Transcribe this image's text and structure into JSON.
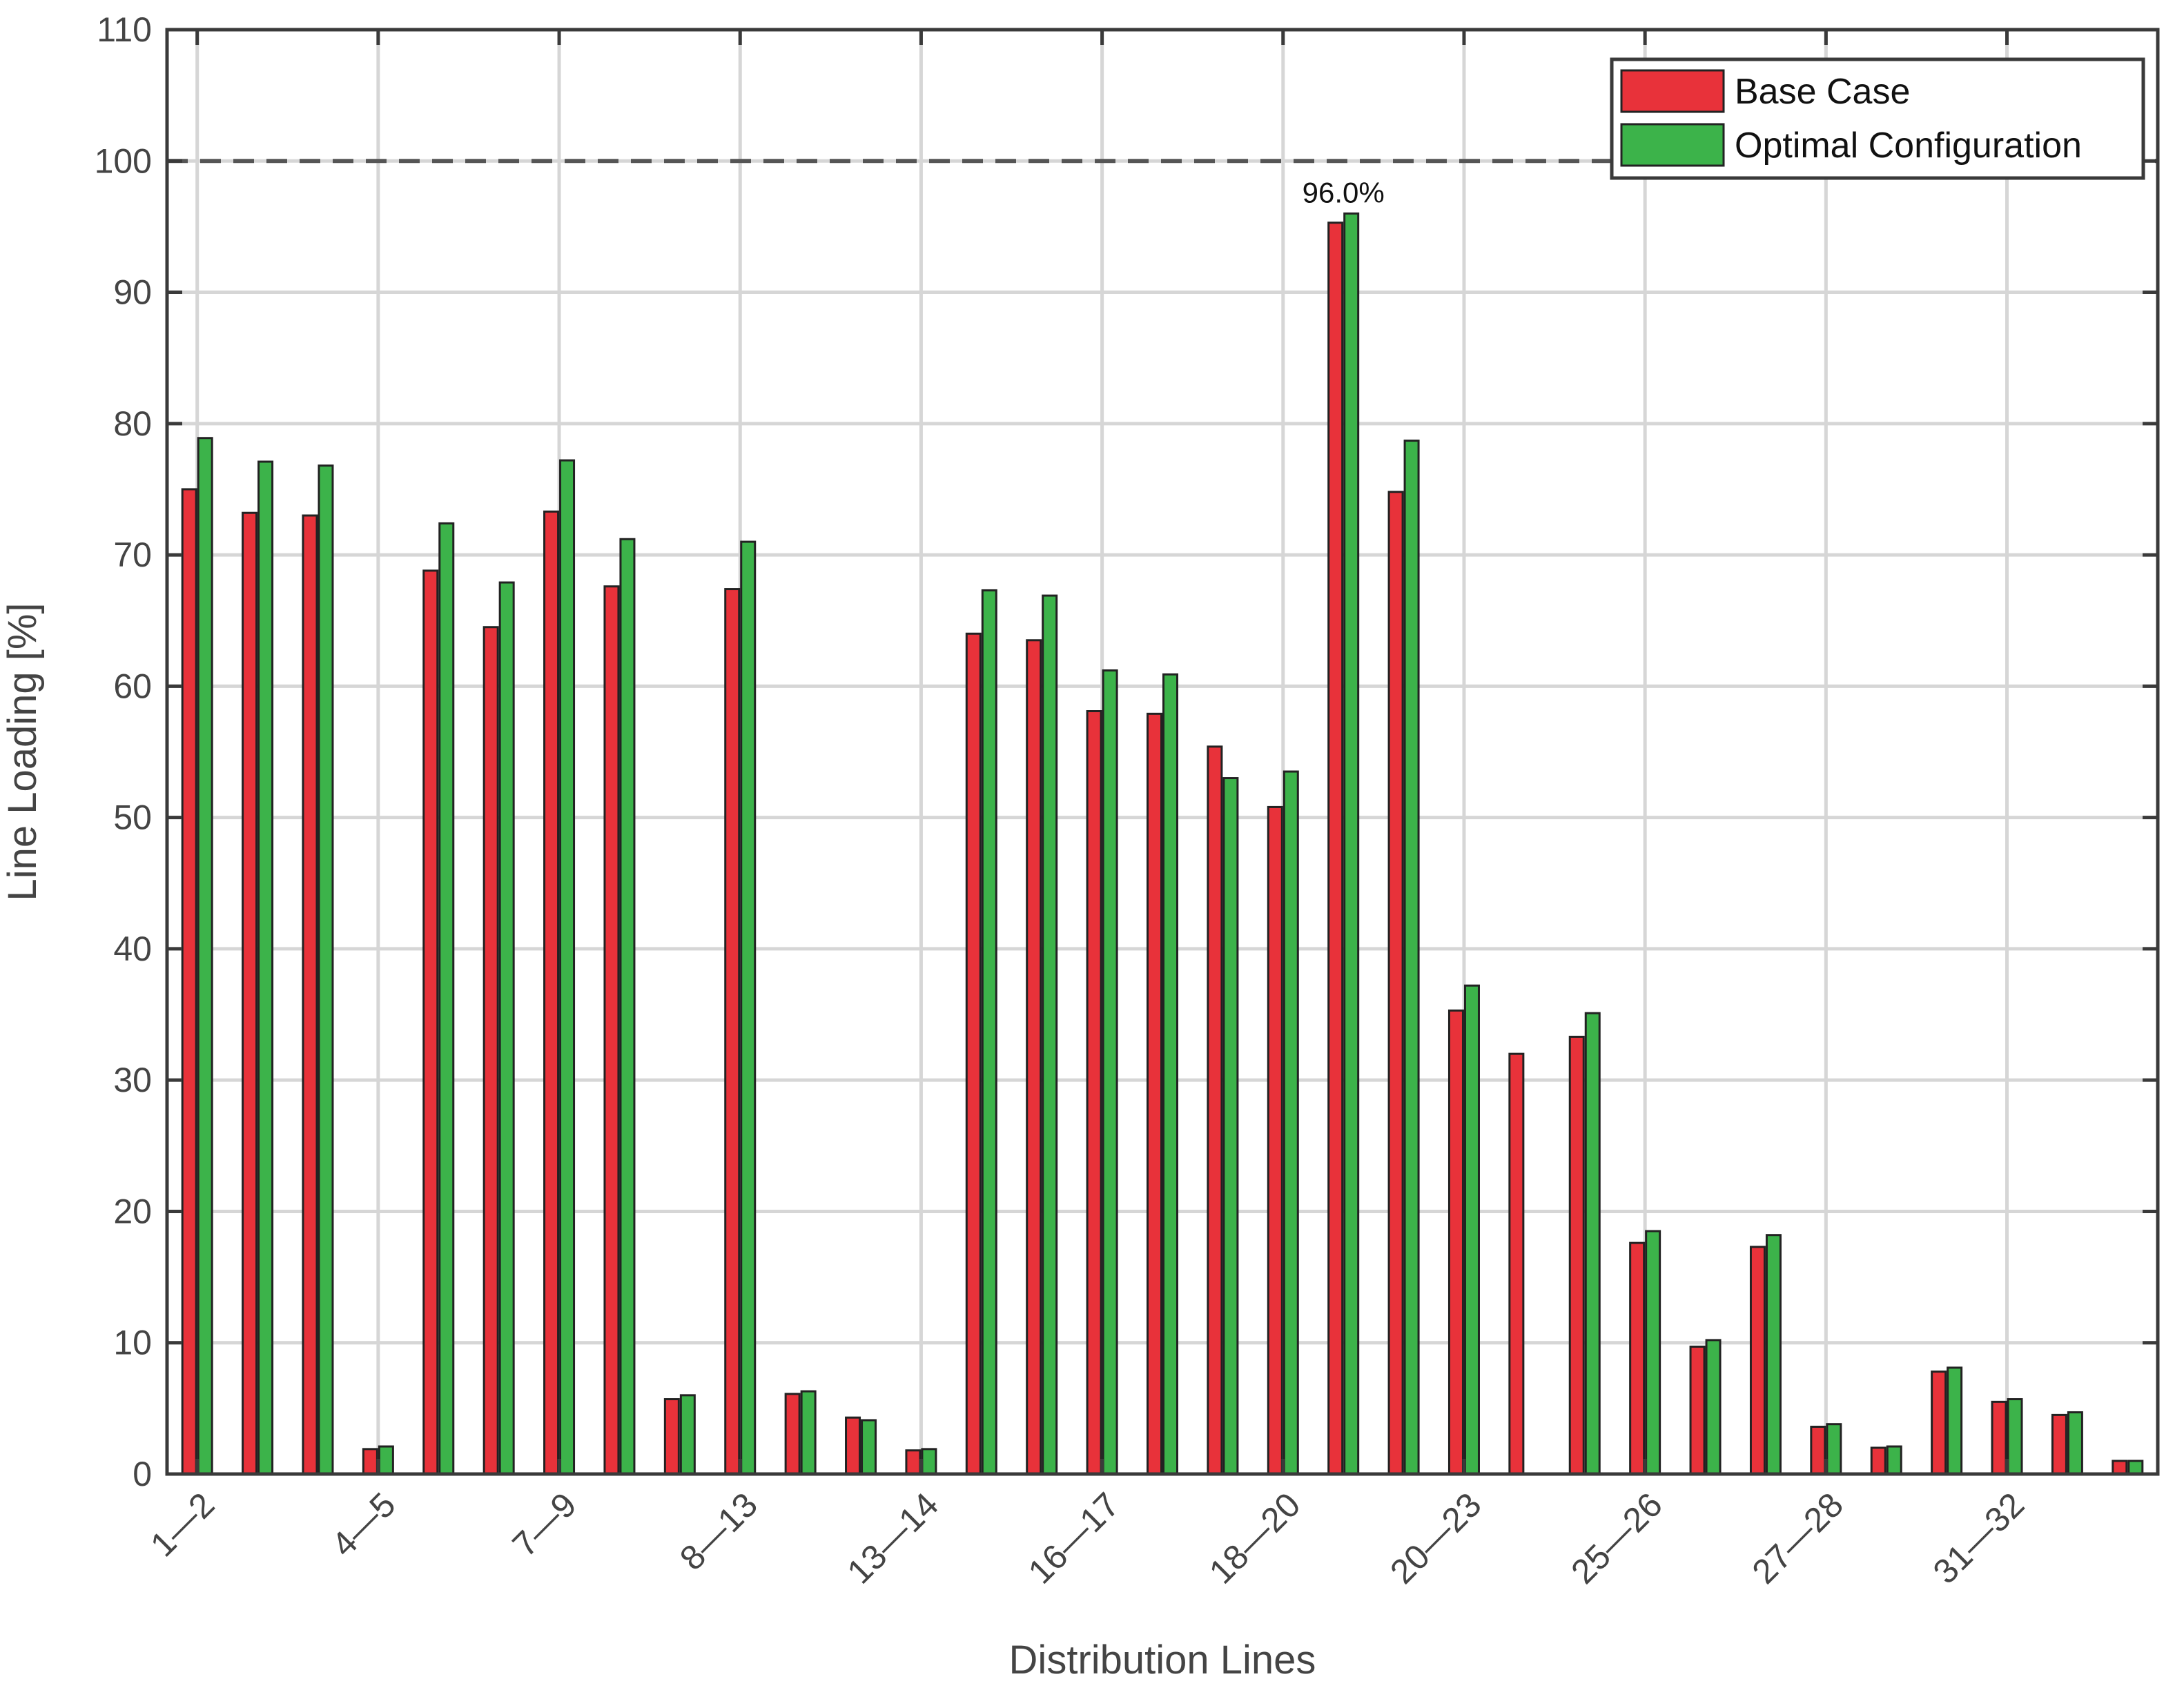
{
  "chart_data": {
    "type": "bar",
    "xlabel": "Distribution Lines",
    "ylabel": "Line Loading [%]",
    "ylim": [
      0,
      110
    ],
    "yticks": [
      0,
      10,
      20,
      30,
      40,
      50,
      60,
      70,
      80,
      90,
      100,
      110
    ],
    "grid": true,
    "legend_position": "top-right",
    "reference_line": {
      "value": 100,
      "style": "dashed"
    },
    "annotation": {
      "text": "96.0%",
      "category_index": 19,
      "series_index": 1
    },
    "tick_labels": [
      {
        "index": 0,
        "label": "1—2"
      },
      {
        "index": 3,
        "label": "4—5"
      },
      {
        "index": 6,
        "label": "7—9"
      },
      {
        "index": 9,
        "label": "8—13"
      },
      {
        "index": 12,
        "label": "13—14"
      },
      {
        "index": 15,
        "label": "16—17"
      },
      {
        "index": 18,
        "label": "18—20"
      },
      {
        "index": 21,
        "label": "20—23"
      },
      {
        "index": 24,
        "label": "25—26"
      },
      {
        "index": 27,
        "label": "27—28"
      },
      {
        "index": 30,
        "label": "31—32"
      }
    ],
    "series": [
      {
        "name": "Base Case",
        "color": "#e8323a",
        "values": [
          75.0,
          73.2,
          73.0,
          1.9,
          68.8,
          64.5,
          73.3,
          67.6,
          5.7,
          67.4,
          6.1,
          4.3,
          1.8,
          64.0,
          63.5,
          58.1,
          57.9,
          55.4,
          50.8,
          95.3,
          74.8,
          35.3,
          32.0,
          33.3,
          17.6,
          9.7,
          17.3,
          3.6,
          2.0,
          7.8,
          5.5,
          4.5,
          1.0
        ]
      },
      {
        "name": "Optimal Configuration",
        "color": "#3cb34a",
        "values": [
          78.9,
          77.1,
          76.8,
          2.1,
          72.4,
          67.9,
          77.2,
          71.2,
          6.0,
          71.0,
          6.3,
          4.1,
          1.9,
          67.3,
          66.9,
          61.2,
          60.9,
          53.0,
          53.5,
          96.0,
          78.7,
          37.2,
          null,
          35.1,
          18.5,
          10.2,
          18.2,
          3.8,
          2.1,
          8.1,
          5.7,
          4.7,
          1.0
        ]
      }
    ]
  }
}
